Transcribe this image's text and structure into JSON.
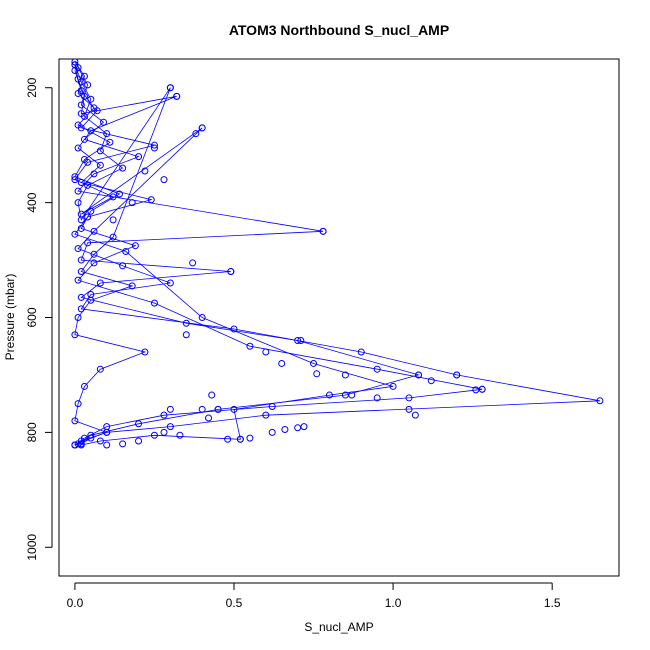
{
  "chart_data": {
    "type": "line",
    "title": "ATOM3 Northbound S_nucl_AMP",
    "xlabel": "S_nucl_AMP",
    "ylabel": "Pressure (mbar)",
    "xlim": [
      -0.05,
      1.71
    ],
    "ylim": [
      1050,
      150
    ],
    "y_reversed": true,
    "x_ticks": [
      0,
      0.5,
      1,
      1.5
    ],
    "x_tick_labels": [
      "0.0",
      "0.5",
      "1.0",
      "1.5"
    ],
    "y_ticks": [
      200,
      400,
      600,
      800,
      1000
    ],
    "y_tick_labels": [
      "200",
      "400",
      "600",
      "800",
      "1000"
    ],
    "grid": false,
    "legend": "none",
    "color": "#0000ff",
    "marker": "open-circle",
    "series": [
      {
        "x": [
          0.0,
          0.02,
          0.05,
          0.03,
          0.1,
          0.08,
          0.15,
          0.04,
          0.01,
          0.02,
          0.3,
          0.12,
          0.06,
          0.02,
          0.18,
          0.05,
          0.01,
          0.0,
          0.22,
          0.08,
          0.03,
          0.01,
          0.0,
          0.1,
          0.05,
          0.02,
          0.0
        ],
        "y": [
          160,
          190,
          220,
          250,
          280,
          310,
          340,
          370,
          400,
          430,
          200,
          460,
          490,
          520,
          545,
          570,
          600,
          630,
          660,
          690,
          720,
          750,
          780,
          800,
          810,
          820,
          822
        ]
      },
      {
        "x": [
          0.0,
          0.03,
          0.01,
          0.07,
          0.02,
          0.25,
          0.04,
          0.0,
          0.12,
          0.02,
          0.4,
          0.06,
          0.01,
          0.15,
          0.3,
          0.05,
          0.02,
          0.5,
          0.9,
          1.2,
          1.65,
          0.6,
          0.3,
          0.1,
          0.02,
          0.0
        ],
        "y": [
          155,
          180,
          210,
          240,
          270,
          300,
          330,
          360,
          390,
          420,
          270,
          450,
          480,
          510,
          540,
          560,
          585,
          620,
          660,
          700,
          745,
          770,
          790,
          800,
          815,
          822
        ]
      },
      {
        "x": [
          0.01,
          0.04,
          0.02,
          0.09,
          0.03,
          0.2,
          0.06,
          0.01,
          0.78,
          0.04,
          0.02,
          0.49,
          0.08,
          0.02,
          0.35,
          0.7,
          1.08,
          0.85,
          0.45,
          0.2,
          0.05,
          0.01
        ],
        "y": [
          165,
          195,
          230,
          260,
          290,
          320,
          350,
          380,
          450,
          470,
          500,
          520,
          540,
          565,
          610,
          640,
          700,
          735,
          760,
          785,
          805,
          820
        ]
      },
      {
        "x": [
          0.0,
          0.02,
          0.06,
          0.01,
          0.11,
          0.03,
          0.0,
          0.14,
          0.05,
          0.02,
          0.19,
          0.06,
          0.01,
          0.25,
          0.55,
          0.95,
          1.28,
          1.05,
          0.62,
          0.28,
          0.1,
          0.03,
          0.0
        ],
        "y": [
          170,
          205,
          235,
          265,
          295,
          325,
          355,
          385,
          415,
          445,
          475,
          505,
          535,
          575,
          650,
          690,
          725,
          740,
          755,
          770,
          790,
          810,
          822
        ]
      },
      {
        "x": [
          0.0,
          0.01,
          0.03,
          0.02,
          0.32,
          0.05,
          0.01,
          0.08,
          0.02,
          0.24,
          0.04,
          0.0,
          0.16,
          0.4,
          0.75,
          1.0,
          0.8,
          0.5,
          0.52,
          0.25,
          0.08,
          0.02
        ],
        "y": [
          160,
          185,
          215,
          245,
          215,
          275,
          305,
          335,
          365,
          395,
          425,
          455,
          485,
          600,
          680,
          720,
          735,
          760,
          812,
          805,
          815,
          822
        ]
      }
    ],
    "points_extra": {
      "x": [
        0.3,
        0.32,
        0.4,
        0.38,
        0.25,
        0.22,
        0.28,
        0.18,
        0.12,
        0.78,
        0.37,
        0.49,
        0.35,
        0.71,
        0.6,
        0.65,
        0.76,
        0.85,
        0.87,
        1.08,
        1.12,
        1.28,
        1.26,
        1.2,
        1.05,
        1.07,
        0.95,
        0.43,
        0.45,
        0.48,
        0.52,
        0.55,
        0.62,
        0.66,
        0.72,
        0.7,
        0.4,
        0.42,
        0.3,
        0.28,
        0.33,
        0.15,
        0.2,
        0.1
      ],
      "y": [
        200,
        215,
        270,
        280,
        305,
        345,
        360,
        400,
        430,
        450,
        505,
        520,
        630,
        640,
        660,
        680,
        698,
        700,
        735,
        700,
        710,
        725,
        726,
        700,
        760,
        770,
        740,
        735,
        760,
        812,
        812,
        810,
        800,
        795,
        790,
        792,
        760,
        775,
        760,
        800,
        805,
        820,
        815,
        822
      ]
    }
  }
}
